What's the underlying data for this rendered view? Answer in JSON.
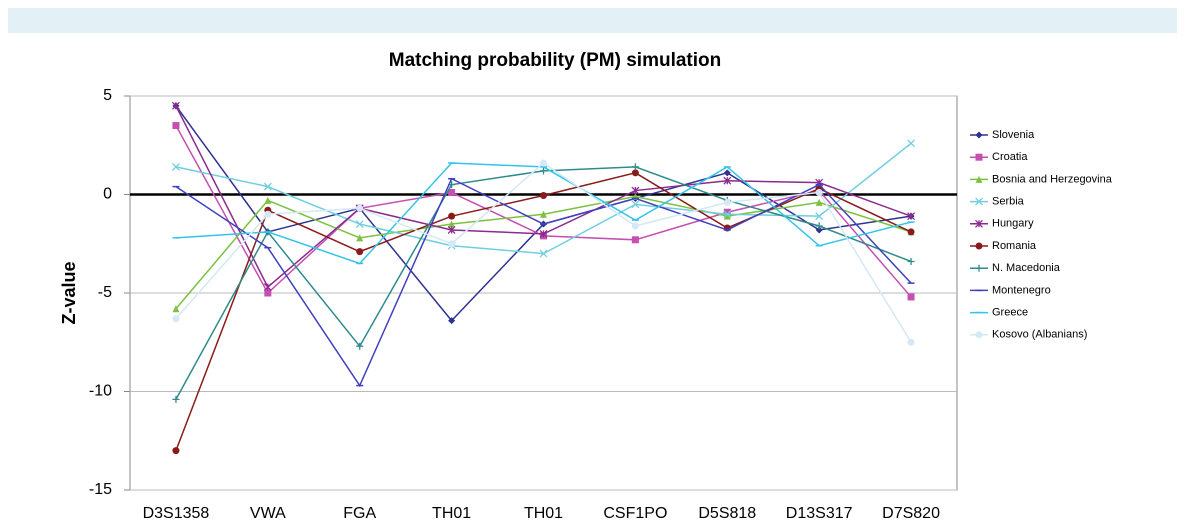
{
  "chart_data": {
    "type": "line",
    "title": "Matching probability (PM) simulation",
    "y_label": "Z-value",
    "categories": [
      "D3S1358",
      "VWA",
      "FGA",
      "TH01",
      "TH01",
      "CSF1PO",
      "D5S818",
      "D13S317",
      "D7S820"
    ],
    "ylim": [
      -15,
      5
    ],
    "yticks": [
      -15,
      -10,
      -5,
      0,
      5
    ],
    "grid": true,
    "legend": "right",
    "series": [
      {
        "name": "Slovenia",
        "color": "#2e3192",
        "marker": "diamond",
        "values": [
          4.5,
          -1.9,
          -0.7,
          -6.4,
          -1.5,
          -0.2,
          1.1,
          -1.8,
          -1.1
        ]
      },
      {
        "name": "Croatia",
        "color": "#c64fb2",
        "marker": "square",
        "values": [
          3.5,
          -5.0,
          -0.7,
          0.1,
          -2.1,
          -2.3,
          -0.9,
          0.2,
          -5.2
        ]
      },
      {
        "name": "Bosnia and Herzegovina",
        "color": "#7cc142",
        "marker": "triangle",
        "values": [
          -5.8,
          -0.3,
          -2.2,
          -1.5,
          -1.0,
          -0.1,
          -1.1,
          -0.4,
          -1.9
        ]
      },
      {
        "name": "Serbia",
        "color": "#6fcfe0",
        "marker": "cross",
        "values": [
          1.4,
          0.4,
          -1.5,
          -2.6,
          -3.0,
          -0.5,
          -1.0,
          -1.1,
          2.6
        ]
      },
      {
        "name": "Hungary",
        "color": "#8b2a8f",
        "marker": "star",
        "values": [
          4.5,
          -4.7,
          -0.7,
          -1.8,
          -2.0,
          0.2,
          0.7,
          0.6,
          -1.1
        ]
      },
      {
        "name": "Romania",
        "color": "#8b1a1a",
        "marker": "circle",
        "values": [
          -13.0,
          -0.8,
          -2.9,
          -1.1,
          -0.05,
          1.1,
          -1.7,
          0.3,
          -1.9
        ]
      },
      {
        "name": "N. Macedonia",
        "color": "#2e8b8b",
        "marker": "plus",
        "values": [
          -10.4,
          -1.9,
          -7.7,
          0.5,
          1.2,
          1.4,
          -0.3,
          -1.6,
          -3.4
        ]
      },
      {
        "name": "Montenegro",
        "color": "#4040c0",
        "marker": "dash",
        "values": [
          0.4,
          -2.7,
          -9.7,
          0.8,
          -1.5,
          -0.2,
          -1.8,
          0.5,
          -4.5
        ]
      },
      {
        "name": "Greece",
        "color": "#33c4e8",
        "marker": "dash",
        "values": [
          -2.2,
          -1.9,
          -3.5,
          1.6,
          1.4,
          -1.3,
          1.4,
          -2.6,
          -1.4
        ]
      },
      {
        "name": "Kosovo (Albanians)",
        "color": "#d5e8f5",
        "marker": "circle",
        "values": [
          -6.3,
          -1.0,
          -0.7,
          -2.5,
          1.6,
          -1.6,
          -0.4,
          0.1,
          -7.5
        ]
      }
    ]
  }
}
